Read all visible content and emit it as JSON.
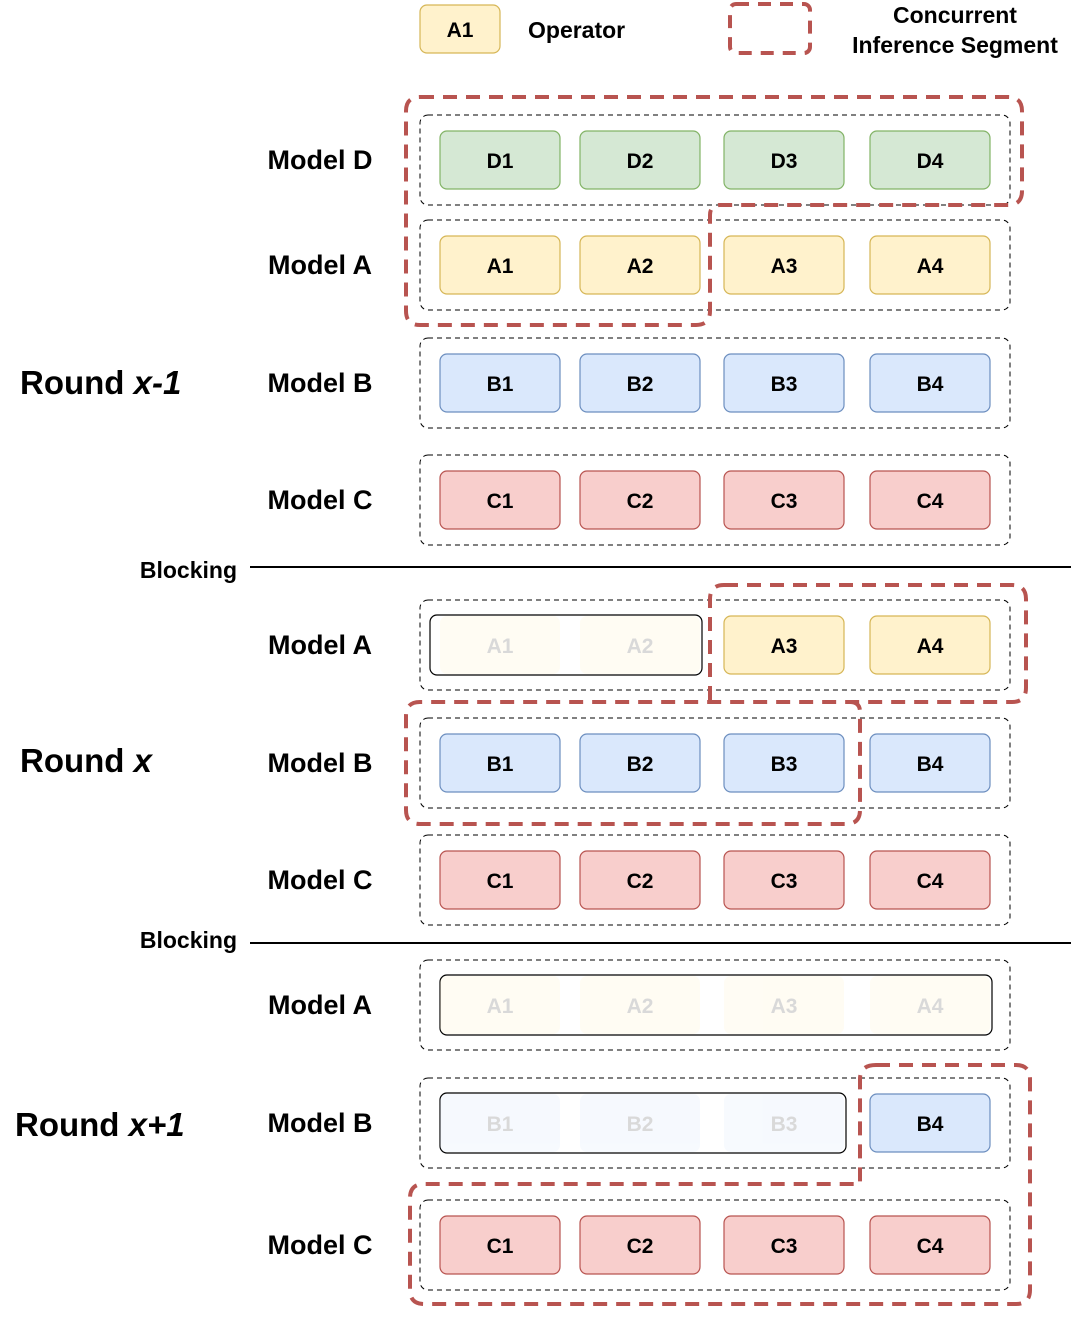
{
  "legend": {
    "operator_sample": "A1",
    "operator_label": "Operator",
    "segment_label_line1": "Concurrent",
    "segment_label_line2": "Inference Segment"
  },
  "colors": {
    "D": {
      "fill": "#d5e8d4",
      "stroke": "#82b366"
    },
    "A": {
      "fill": "#fff2cc",
      "stroke": "#d6b656"
    },
    "B": {
      "fill": "#dae8fc",
      "stroke": "#6c8ebf"
    },
    "C": {
      "fill": "#f8cecc",
      "stroke": "#b85450"
    },
    "segment": "#b85450"
  },
  "blocking_label": "Blocking",
  "rounds": [
    {
      "label_prefix": "Round ",
      "label_var": "x-1",
      "rows": [
        {
          "model": "Model D",
          "key": "D",
          "ops": [
            "D1",
            "D2",
            "D3",
            "D4"
          ],
          "faded": 0
        },
        {
          "model": "Model A",
          "key": "A",
          "ops": [
            "A1",
            "A2",
            "A3",
            "A4"
          ],
          "faded": 0
        },
        {
          "model": "Model B",
          "key": "B",
          "ops": [
            "B1",
            "B2",
            "B3",
            "B4"
          ],
          "faded": 0
        },
        {
          "model": "Model C",
          "key": "C",
          "ops": [
            "C1",
            "C2",
            "C3",
            "C4"
          ],
          "faded": 0
        }
      ]
    },
    {
      "label_prefix": "Round ",
      "label_var": "x",
      "rows": [
        {
          "model": "Model A",
          "key": "A",
          "ops": [
            "A1",
            "A2",
            "A3",
            "A4"
          ],
          "faded": 2
        },
        {
          "model": "Model B",
          "key": "B",
          "ops": [
            "B1",
            "B2",
            "B3",
            "B4"
          ],
          "faded": 0
        },
        {
          "model": "Model C",
          "key": "C",
          "ops": [
            "C1",
            "C2",
            "C3",
            "C4"
          ],
          "faded": 0
        }
      ]
    },
    {
      "label_prefix": "Round ",
      "label_var": "x+1",
      "rows": [
        {
          "model": "Model A",
          "key": "A",
          "ops": [
            "A1",
            "A2",
            "A3",
            "A4"
          ],
          "faded": 4
        },
        {
          "model": "Model B",
          "key": "B",
          "ops": [
            "B1",
            "B2",
            "B3",
            "B4"
          ],
          "faded": 3
        },
        {
          "model": "Model C",
          "key": "C",
          "ops": [
            "C1",
            "C2",
            "C3",
            "C4"
          ],
          "faded": 0
        }
      ]
    }
  ]
}
